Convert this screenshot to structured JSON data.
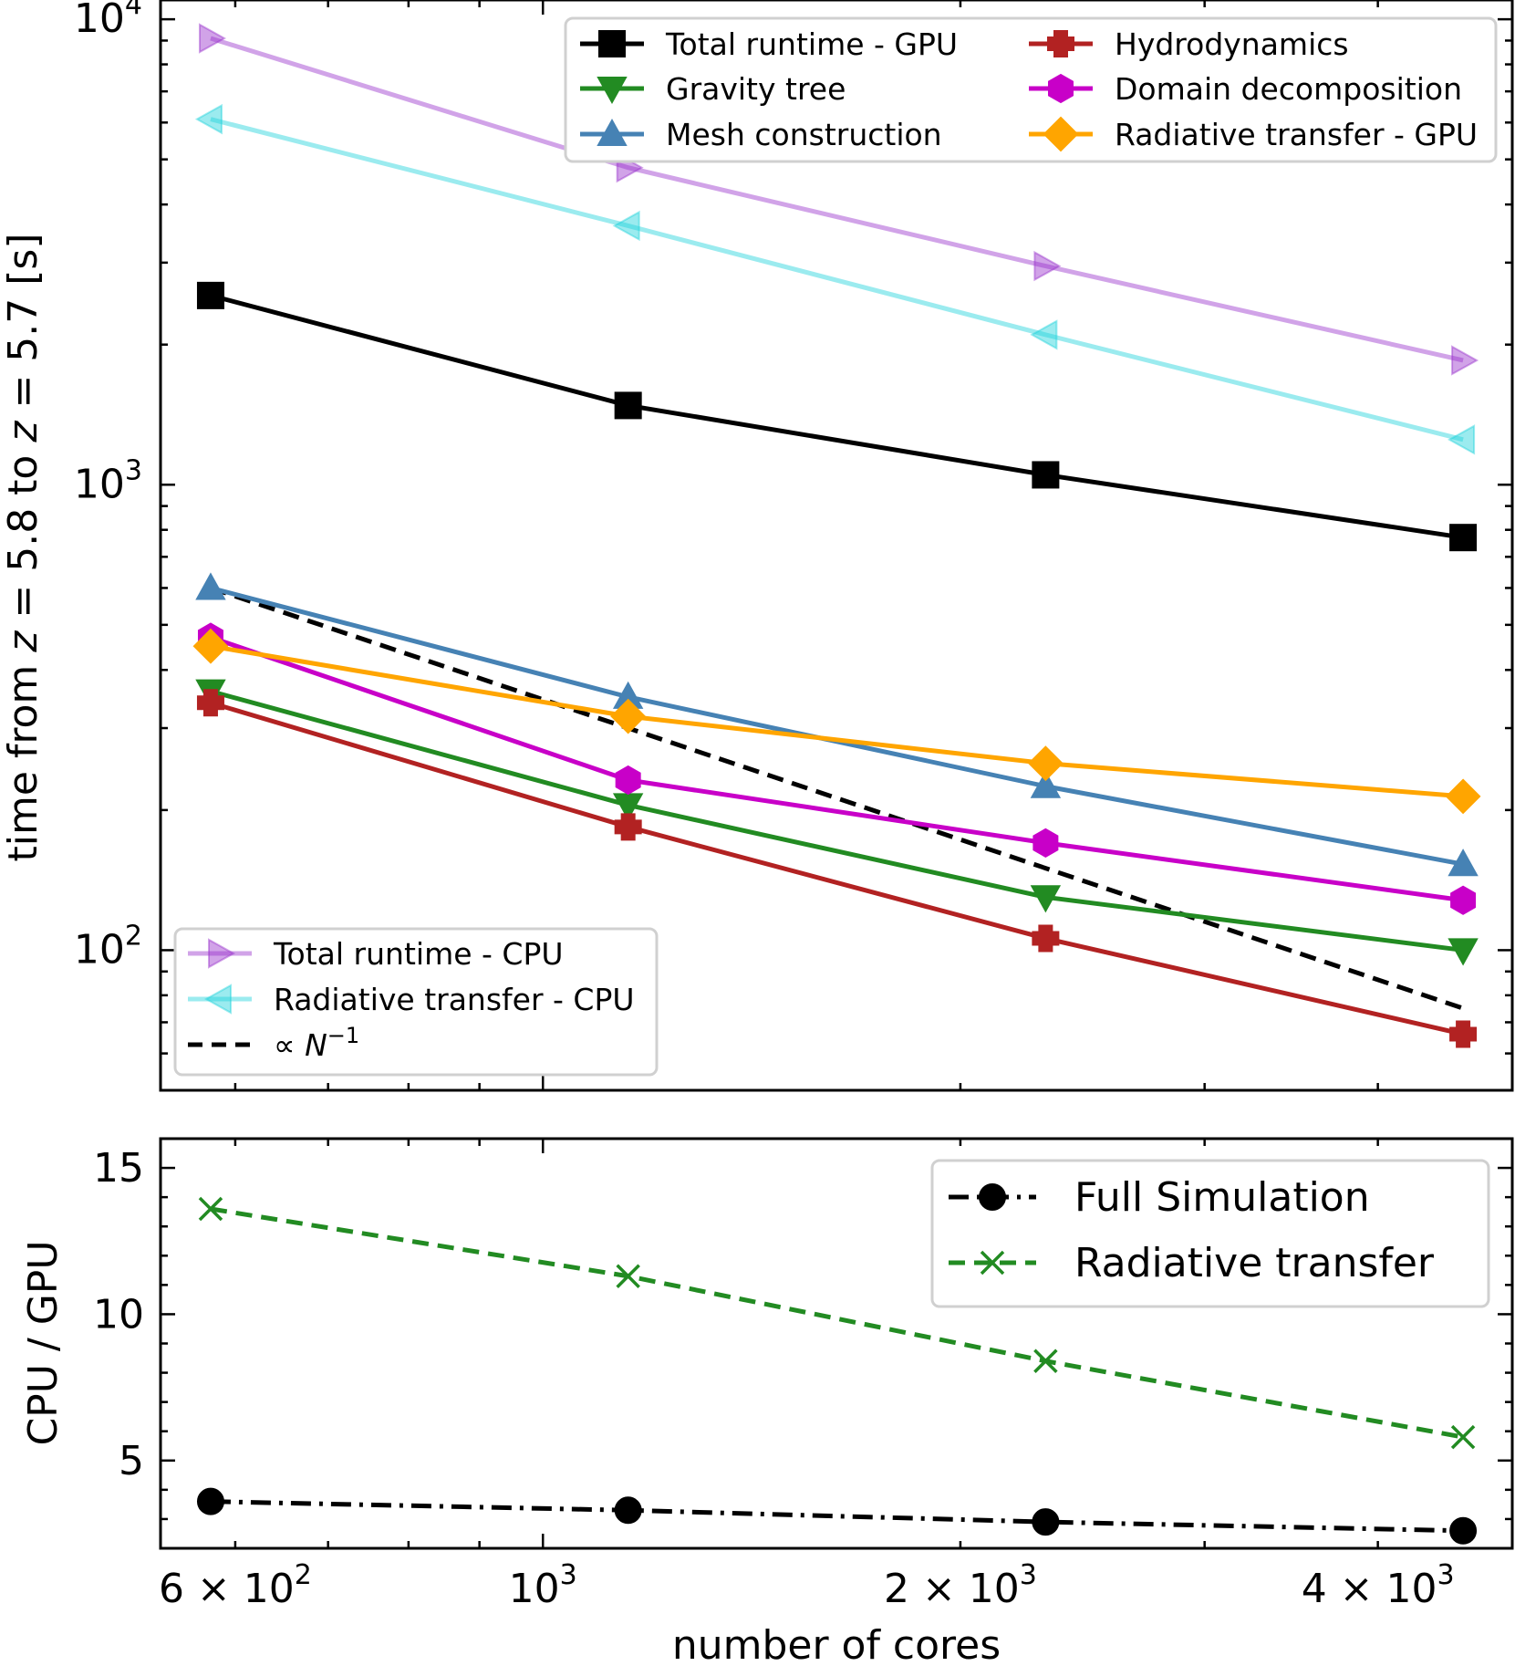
{
  "chart_data": [
    {
      "type": "line",
      "xlabel": "",
      "ylabel": "time from z = 5.8 to z = 5.7 [s]",
      "xscale": "log",
      "yscale": "log",
      "xlim": [
        530,
        5000
      ],
      "ylim": [
        50,
        11000
      ],
      "y_ticks": [
        {
          "value": 100,
          "base": "10",
          "exp": "2"
        },
        {
          "value": 1000,
          "base": "10",
          "exp": "3"
        },
        {
          "value": 10000,
          "base": "10",
          "exp": "4"
        }
      ],
      "x": [
        576,
        1152,
        2304,
        4608
      ],
      "series": [
        {
          "name": "Total runtime - GPU",
          "values": [
            2550,
            1480,
            1050,
            770
          ],
          "color": "#000000",
          "marker": "square",
          "linestyle": "solid",
          "alpha": 1
        },
        {
          "name": "Gravity tree",
          "values": [
            360,
            205,
            130,
            100
          ],
          "color": "#228b22",
          "marker": "triangle-down",
          "linestyle": "solid",
          "alpha": 1
        },
        {
          "name": "Mesh construction",
          "values": [
            600,
            350,
            225,
            153
          ],
          "color": "#4682b4",
          "marker": "triangle-up",
          "linestyle": "solid",
          "alpha": 1
        },
        {
          "name": "Hydrodynamics",
          "values": [
            340,
            184,
            106,
            66
          ],
          "color": "#b22222",
          "marker": "plus",
          "linestyle": "solid",
          "alpha": 1
        },
        {
          "name": "Domain decomposition",
          "values": [
            470,
            232,
            170,
            128
          ],
          "color": "#c800c8",
          "marker": "hexagon",
          "linestyle": "solid",
          "alpha": 1
        },
        {
          "name": "Radiative transfer - GPU",
          "values": [
            450,
            318,
            252,
            214
          ],
          "color": "#ffa500",
          "marker": "diamond",
          "linestyle": "solid",
          "alpha": 1
        },
        {
          "name": "Total runtime - CPU",
          "values": [
            9100,
            4800,
            2950,
            1850
          ],
          "color": "#9932cc",
          "marker": "triangle-right",
          "linestyle": "solid",
          "alpha": 0.45
        },
        {
          "name": "Radiative transfer - CPU",
          "values": [
            6100,
            3600,
            2100,
            1250
          ],
          "color": "#22d3dc",
          "marker": "triangle-left",
          "linestyle": "solid",
          "alpha": 0.45
        },
        {
          "name": "∝ N",
          "name_sup": "−1",
          "values": [
            600,
            300,
            150,
            75
          ],
          "color": "#000000",
          "marker": "none",
          "linestyle": "dashed",
          "alpha": 1
        }
      ],
      "legends": [
        {
          "placement": "top-right",
          "entries": [
            "Total runtime - GPU",
            "Hydrodynamics",
            "Gravity tree",
            "Domain decomposition",
            "Mesh construction",
            "Radiative transfer - GPU"
          ]
        },
        {
          "placement": "bottom-left",
          "entries": [
            "Total runtime - CPU",
            "Radiative transfer - CPU",
            "∝ N"
          ]
        }
      ]
    },
    {
      "type": "line",
      "xlabel": "number of cores",
      "ylabel": "CPU / GPU",
      "xscale": "log",
      "yscale": "linear",
      "xlim": [
        530,
        5000
      ],
      "ylim": [
        2,
        16
      ],
      "y_ticks": [
        5,
        10,
        15
      ],
      "x_ticks": [
        {
          "value": 600,
          "label": "6 × 10",
          "exp": "2"
        },
        {
          "value": 1000,
          "label": "10",
          "exp": "3"
        },
        {
          "value": 2000,
          "label": "2 × 10",
          "exp": "3"
        },
        {
          "value": 4000,
          "label": "4 × 10",
          "exp": "3"
        }
      ],
      "x": [
        576,
        1152,
        2304,
        4608
      ],
      "series": [
        {
          "name": "Full Simulation",
          "values": [
            3.6,
            3.3,
            2.9,
            2.6
          ],
          "color": "#000000",
          "marker": "circle",
          "linestyle": "dashdot"
        },
        {
          "name": "Radiative transfer",
          "values": [
            13.6,
            11.3,
            8.4,
            5.8
          ],
          "color": "#228b22",
          "marker": "x",
          "linestyle": "dashed"
        }
      ],
      "legends": [
        {
          "placement": "top-right",
          "entries": [
            "Full Simulation",
            "Radiative transfer"
          ]
        }
      ]
    }
  ]
}
